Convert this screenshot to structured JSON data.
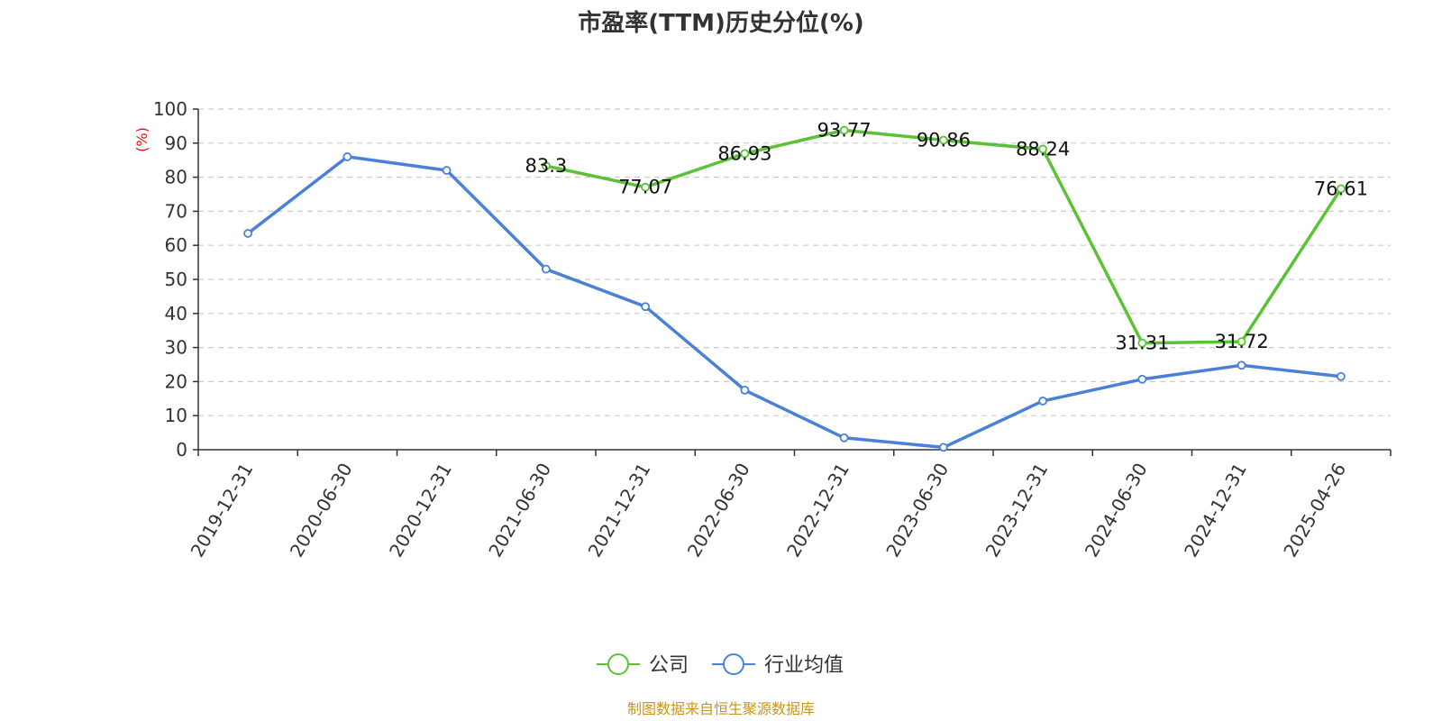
{
  "chart_data": {
    "type": "line",
    "title": "市盈率(TTM)历史分位(%)",
    "ylabel": "(%)",
    "ylim": [
      0,
      100
    ],
    "yticks": [
      0,
      10,
      20,
      30,
      40,
      50,
      60,
      70,
      80,
      90,
      100
    ],
    "grid": true,
    "legend_position": "bottom-center",
    "categories": [
      "2019-12-31",
      "2020-06-30",
      "2020-12-31",
      "2021-06-30",
      "2021-12-31",
      "2022-06-30",
      "2022-12-31",
      "2023-06-30",
      "2023-12-31",
      "2024-06-30",
      "2024-12-31",
      "2025-04-26"
    ],
    "series": [
      {
        "name": "公司",
        "color": "#5ac234",
        "values": [
          null,
          null,
          null,
          83.3,
          77.07,
          86.93,
          93.77,
          90.86,
          88.24,
          31.31,
          31.72,
          76.61
        ],
        "labels": [
          "",
          "",
          "",
          "83.3",
          "77.07",
          "86.93",
          "93.77",
          "90.86",
          "88.24",
          "31.31",
          "31.72",
          "76.61"
        ]
      },
      {
        "name": "行业均值",
        "color": "#4a80d9",
        "values": [
          63.5,
          86,
          82,
          53,
          42,
          17.5,
          3.5,
          0.7,
          14.3,
          20.7,
          24.8,
          21.5
        ]
      }
    ],
    "source": "制图数据来自恒生聚源数据库"
  }
}
